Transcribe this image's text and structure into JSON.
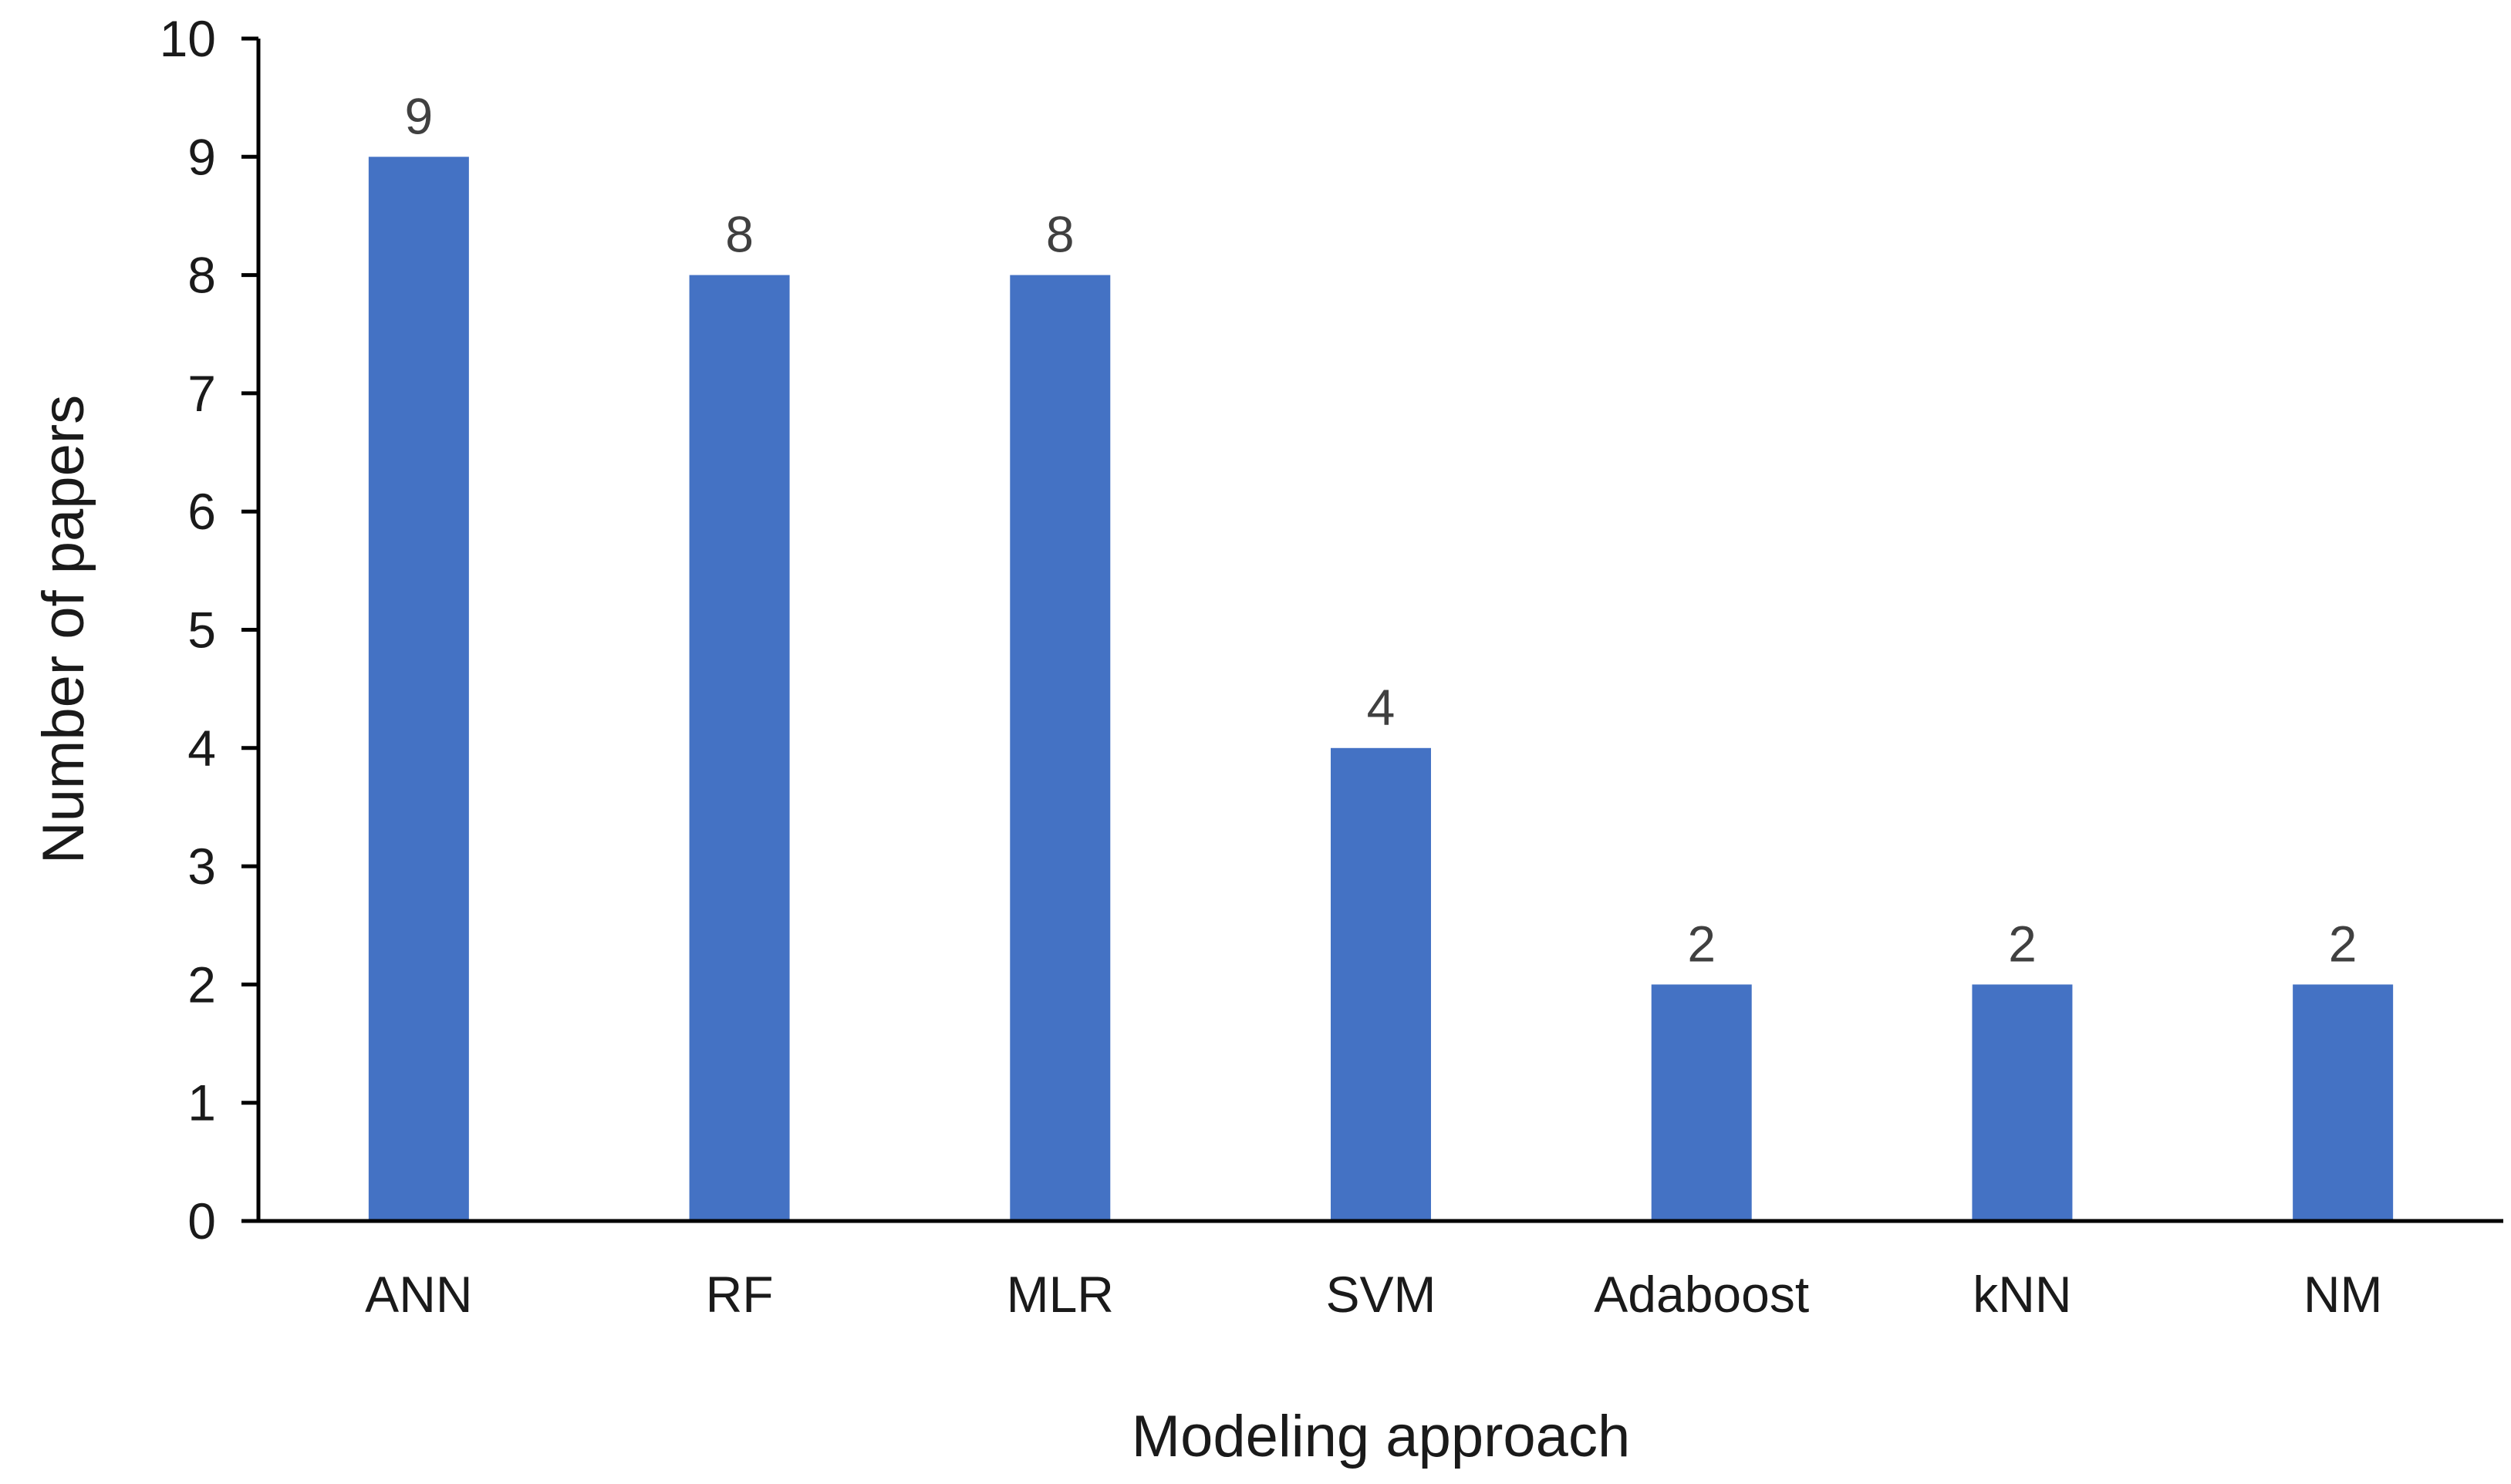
{
  "chart_data": {
    "type": "bar",
    "categories": [
      "ANN",
      "RF",
      "MLR",
      "SVM",
      "Adaboost",
      "kNN",
      "NM"
    ],
    "values": [
      9,
      8,
      8,
      4,
      2,
      2,
      2
    ],
    "data_labels": [
      "9",
      "8",
      "8",
      "4",
      "2",
      "2",
      "2"
    ],
    "title": "",
    "xlabel": "Modeling approach",
    "ylabel": "Number of papers",
    "ylim": [
      0,
      10
    ],
    "yticks": [
      0,
      1,
      2,
      3,
      4,
      5,
      6,
      7,
      8,
      9,
      10
    ],
    "grid": false,
    "legend": "none",
    "bar_color": "#4472C4",
    "axis_color": "#000000"
  }
}
